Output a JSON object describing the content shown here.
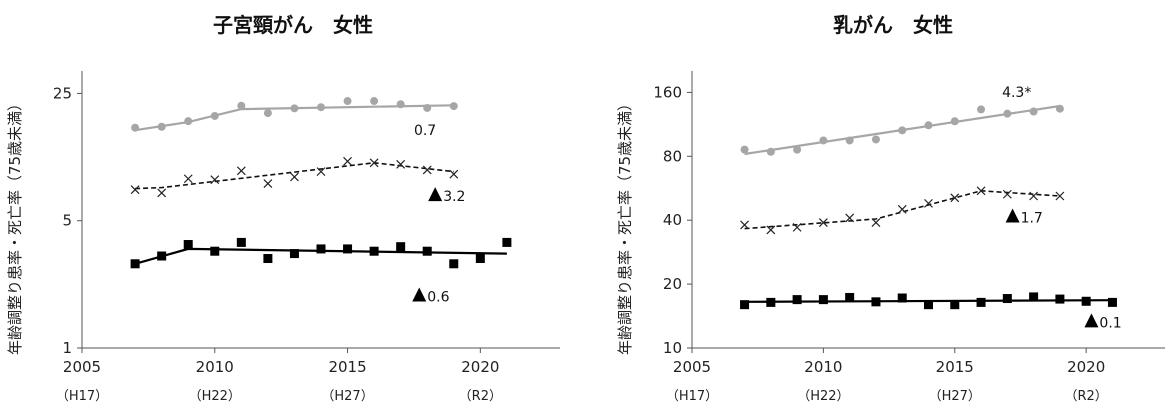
{
  "chart_data": [
    {
      "type": "line",
      "title": "子宮頸がん　女性",
      "ylabel": "年齢調整り患率・死亡率（75歳未満）",
      "yscale": "log",
      "ylim": [
        1,
        30
      ],
      "xlim": [
        2005,
        2023
      ],
      "yticks": [
        "1",
        "5",
        "25"
      ],
      "xticks": [
        {
          "year": "2005",
          "era": "（H17）"
        },
        {
          "year": "2010",
          "era": "（H22）"
        },
        {
          "year": "2015",
          "era": "（H27）"
        },
        {
          "year": "2020",
          "era": "（R2）"
        }
      ],
      "colors": {
        "gray": "#a6a6a6",
        "black": "#000000",
        "dash": "#111111"
      },
      "series": [
        {
          "style": "gray-circles",
          "x": [
            2007,
            2008,
            2009,
            2010,
            2011,
            2012,
            2013,
            2014,
            2015,
            2016,
            2017,
            2018,
            2019
          ],
          "y": [
            16.2,
            16.4,
            17.6,
            18.8,
            21.4,
            19.5,
            20.7,
            21.0,
            22.7,
            22.7,
            21.8,
            20.8,
            21.3
          ],
          "trend": {
            "x": [
              2007,
              2009,
              2011,
              2019
            ],
            "y": [
              15.7,
              17.4,
              20.5,
              21.5
            ]
          },
          "annotation": {
            "text": "0.7",
            "x": 2017.5,
            "y": 14.8,
            "triangle": false
          }
        },
        {
          "style": "x-dashed",
          "x": [
            2007,
            2008,
            2009,
            2010,
            2011,
            2012,
            2013,
            2014,
            2015,
            2016,
            2017,
            2018,
            2019
          ],
          "y": [
            7.4,
            7.1,
            8.5,
            8.4,
            9.4,
            8.0,
            8.7,
            9.3,
            10.6,
            10.4,
            10.2,
            9.5,
            9.0
          ],
          "trend": {
            "x": [
              2007,
              2008,
              2016,
              2019
            ],
            "y": [
              7.5,
              7.6,
              10.4,
              9.3
            ]
          },
          "annotation": {
            "text": "3.2",
            "x": 2018.3,
            "y": 6.4,
            "triangle": true
          }
        },
        {
          "style": "black-squares",
          "x": [
            2007,
            2008,
            2009,
            2010,
            2011,
            2012,
            2013,
            2014,
            2015,
            2016,
            2017,
            2018,
            2019,
            2020,
            2021
          ],
          "y": [
            2.9,
            3.2,
            3.7,
            3.4,
            3.8,
            3.1,
            3.3,
            3.5,
            3.5,
            3.4,
            3.6,
            3.4,
            2.9,
            3.1,
            3.8
          ],
          "trend": {
            "x": [
              2007,
              2009,
              2021
            ],
            "y": [
              2.9,
              3.5,
              3.3
            ]
          },
          "annotation": {
            "text": "0.6",
            "x": 2017.7,
            "y": 1.8,
            "triangle": true
          }
        }
      ]
    },
    {
      "type": "line",
      "title": "乳がん　女性",
      "ylabel": "年齢調整り患率・死亡率（75歳未満）",
      "yscale": "log",
      "ylim": [
        10,
        185
      ],
      "xlim": [
        2005,
        2023
      ],
      "yticks": [
        "10",
        "20",
        "40",
        "80",
        "160"
      ],
      "xticks": [
        {
          "year": "2005",
          "era": "（H17）"
        },
        {
          "year": "2010",
          "era": "（H22）"
        },
        {
          "year": "2015",
          "era": "（H27）"
        },
        {
          "year": "2020",
          "era": "（R2）"
        }
      ],
      "colors": {
        "gray": "#a6a6a6",
        "black": "#000000",
        "dash": "#111111"
      },
      "series": [
        {
          "style": "gray-circles",
          "x": [
            2007,
            2008,
            2009,
            2010,
            2011,
            2012,
            2013,
            2014,
            2015,
            2016,
            2017,
            2018,
            2019
          ],
          "y": [
            86,
            84,
            86,
            95,
            95,
            96,
            106,
            112,
            117,
            133,
            127,
            130,
            134
          ],
          "trend": {
            "x": [
              2007,
              2019
            ],
            "y": [
              82,
              138
            ]
          },
          "annotation": {
            "text": "4.3*",
            "x": 2016.8,
            "y": 152,
            "triangle": false
          }
        },
        {
          "style": "x-dashed",
          "x": [
            2007,
            2008,
            2009,
            2010,
            2011,
            2012,
            2013,
            2014,
            2015,
            2016,
            2017,
            2018,
            2019
          ],
          "y": [
            38,
            36,
            37,
            39,
            41,
            39,
            45,
            48,
            51,
            55,
            53,
            52,
            52
          ],
          "trend": {
            "x": [
              2007,
              2012,
              2016,
              2019
            ],
            "y": [
              36.5,
              40.5,
              55,
              52
            ]
          },
          "annotation": {
            "text": "1.7",
            "x": 2017.2,
            "y": 39,
            "triangle": true
          }
        },
        {
          "style": "black-squares",
          "x": [
            2007,
            2008,
            2009,
            2010,
            2011,
            2012,
            2013,
            2014,
            2015,
            2016,
            2017,
            2018,
            2019,
            2020,
            2021
          ],
          "y": [
            16.0,
            16.4,
            16.9,
            16.9,
            17.3,
            16.5,
            17.2,
            16.0,
            16.0,
            16.4,
            17.1,
            17.4,
            17.0,
            16.6,
            16.4
          ],
          "trend": {
            "x": [
              2007,
              2021
            ],
            "y": [
              16.5,
              16.8
            ]
          },
          "annotation": {
            "text": "0.1",
            "x": 2020.2,
            "y": 12.5,
            "triangle": true
          }
        }
      ]
    }
  ]
}
